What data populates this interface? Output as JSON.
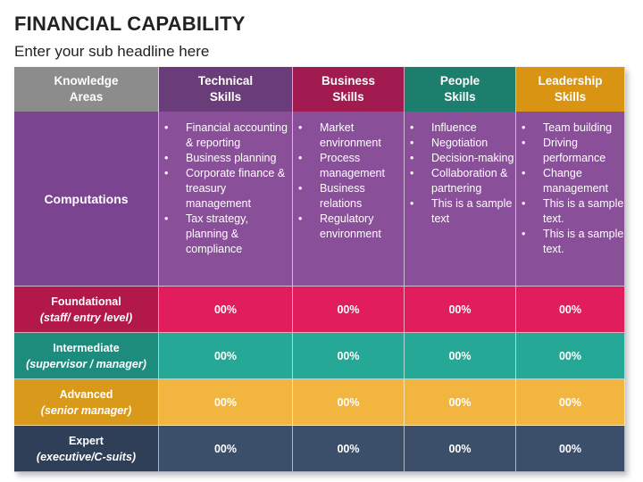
{
  "title": "FINANCIAL CAPABILITY",
  "subtitle": "Enter your sub headline here",
  "colors": {
    "knowledge_header": "#8c8c8c",
    "technical_header": "#6a3d7a",
    "business_header": "#a11a50",
    "people_header": "#1c7f6e",
    "leadership_header": "#d99414",
    "computations_bg": "#8a4f99",
    "computations_label_bg": "#7b4490",
    "foundational": "#e11d5b",
    "foundational_label": "#b3184a",
    "intermediate": "#25a895",
    "intermediate_label": "#1e8c7c",
    "advanced": "#f2b640",
    "advanced_label": "#d99a1c",
    "expert": "#3b4f6b",
    "expert_label": "#2f3f57"
  },
  "headers": {
    "knowledge": [
      "Knowledge",
      "Areas"
    ],
    "technical": [
      "Technical",
      "Skills"
    ],
    "business": [
      "Business",
      "Skills"
    ],
    "people": [
      "People",
      "Skills"
    ],
    "leadership": [
      "Leadership",
      "Skills"
    ]
  },
  "computations": {
    "label": "Computations",
    "technical": [
      "Financial accounting & reporting",
      "Business planning",
      "Corporate finance & treasury management",
      "Tax strategy, planning & compliance"
    ],
    "business": [
      "Market environment",
      "Process management",
      "Business relations",
      "Regulatory environment"
    ],
    "people": [
      "Influence",
      "Negotiation",
      "Decision-making",
      "Collaboration & partnering",
      "This is a sample text"
    ],
    "leadership": [
      "Team building",
      "Driving performance",
      "Change management",
      "This is a sample text.",
      "This is a sample text."
    ]
  },
  "levels": [
    {
      "name": "Foundational",
      "desc": "(staff/ entry level)",
      "values": [
        "00%",
        "00%",
        "00%",
        "00%"
      ]
    },
    {
      "name": "Intermediate",
      "desc": "(supervisor / manager)",
      "values": [
        "00%",
        "00%",
        "00%",
        "00%"
      ]
    },
    {
      "name": "Advanced",
      "desc": "(senior manager)",
      "values": [
        "00%",
        "00%",
        "00%",
        "00%"
      ]
    },
    {
      "name": "Expert",
      "desc": "(executive/C-suits)",
      "values": [
        "00%",
        "00%",
        "00%",
        "00%"
      ]
    }
  ]
}
